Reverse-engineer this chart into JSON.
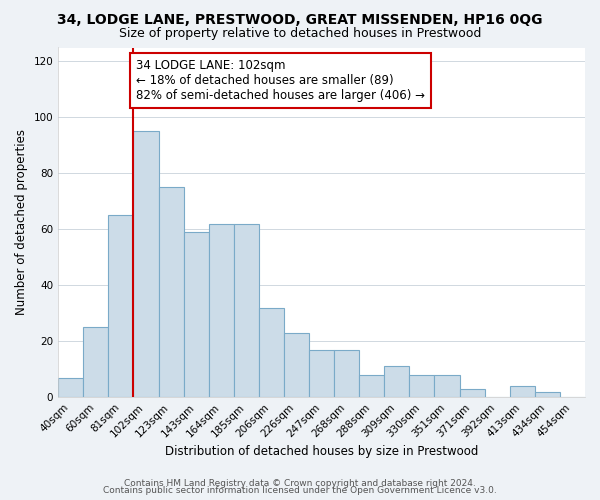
{
  "title": "34, LODGE LANE, PRESTWOOD, GREAT MISSENDEN, HP16 0QG",
  "subtitle": "Size of property relative to detached houses in Prestwood",
  "xlabel": "Distribution of detached houses by size in Prestwood",
  "ylabel": "Number of detached properties",
  "bar_labels": [
    "40sqm",
    "60sqm",
    "81sqm",
    "102sqm",
    "123sqm",
    "143sqm",
    "164sqm",
    "185sqm",
    "206sqm",
    "226sqm",
    "247sqm",
    "268sqm",
    "288sqm",
    "309sqm",
    "330sqm",
    "351sqm",
    "371sqm",
    "392sqm",
    "413sqm",
    "434sqm",
    "454sqm"
  ],
  "bar_heights": [
    7,
    25,
    65,
    95,
    75,
    59,
    62,
    62,
    32,
    23,
    17,
    17,
    8,
    11,
    8,
    8,
    3,
    0,
    4,
    2,
    0
  ],
  "bar_color": "#ccdce8",
  "bar_edge_color": "#7aaac8",
  "vline_x": 2.5,
  "vline_color": "#cc0000",
  "annotation_text": "34 LODGE LANE: 102sqm\n← 18% of detached houses are smaller (89)\n82% of semi-detached houses are larger (406) →",
  "annotation_box_color": "#ffffff",
  "annotation_box_edge_color": "#cc0000",
  "ylim": [
    0,
    125
  ],
  "yticks": [
    0,
    20,
    40,
    60,
    80,
    100,
    120
  ],
  "footer_line1": "Contains HM Land Registry data © Crown copyright and database right 2024.",
  "footer_line2": "Contains public sector information licensed under the Open Government Licence v3.0.",
  "title_fontsize": 10,
  "subtitle_fontsize": 9,
  "axis_label_fontsize": 8.5,
  "tick_fontsize": 7.5,
  "annotation_fontsize": 8.5,
  "footer_fontsize": 6.5,
  "background_color": "#eef2f6",
  "plot_background_color": "#ffffff",
  "grid_color": "#d0d8e0"
}
